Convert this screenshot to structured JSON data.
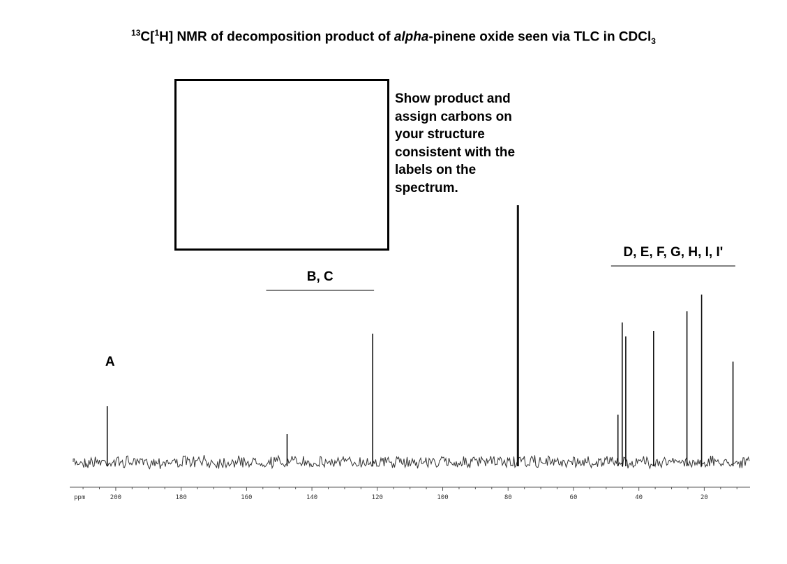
{
  "title": {
    "sup1": "13",
    "part1": "C[",
    "sup2": "1",
    "part2": "H] NMR of decomposition product of ",
    "italic": "alpha",
    "part3": "-pinene oxide seen via TLC in CDCl",
    "sub": "3"
  },
  "instruction": "Show product and\nassign carbons on\nyour structure\nconsistent with the\nlabels on the\nspectrum.",
  "chart_data": {
    "type": "line",
    "xlabel": "ppm",
    "xlim": [
      213,
      6
    ],
    "x_reversed": true,
    "ylim": [
      0,
      100
    ],
    "ticks": [
      200,
      180,
      160,
      140,
      120,
      100,
      80,
      60,
      40,
      20
    ],
    "peaks": [
      {
        "ppm": 202.6,
        "intensity": 20
      },
      {
        "ppm": 147.6,
        "intensity": 10
      },
      {
        "ppm": 121.4,
        "intensity": 46
      },
      {
        "ppm": 77.0,
        "intensity": 92
      },
      {
        "ppm": 46.4,
        "intensity": 17
      },
      {
        "ppm": 45.1,
        "intensity": 50
      },
      {
        "ppm": 44.0,
        "intensity": 45
      },
      {
        "ppm": 35.5,
        "intensity": 47
      },
      {
        "ppm": 25.3,
        "intensity": 54
      },
      {
        "ppm": 20.8,
        "intensity": 60
      },
      {
        "ppm": 11.2,
        "intensity": 36
      }
    ],
    "annotations": [
      {
        "label": "A",
        "ppm": 202.6,
        "bracket": null
      },
      {
        "label": "B, C",
        "bracket": [
          154.0,
          121.0
        ]
      },
      {
        "label": "D, E, F, G, H, I, I'",
        "bracket": [
          48.5,
          10.5
        ]
      }
    ]
  }
}
